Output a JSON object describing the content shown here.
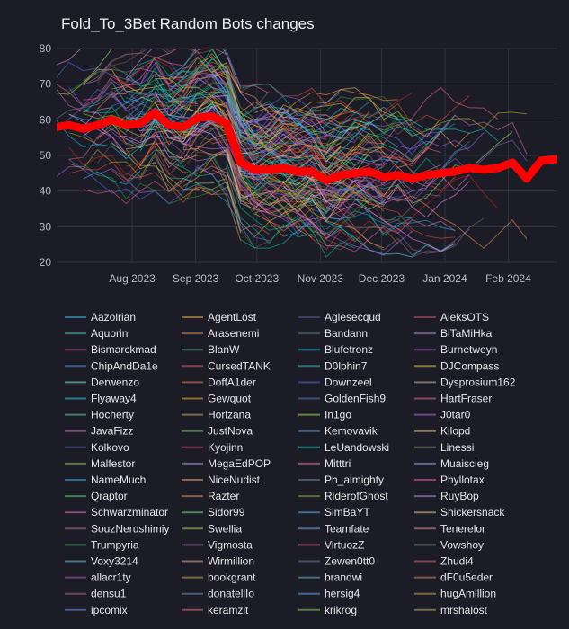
{
  "chart_data": {
    "type": "line",
    "title": "Fold_To_3Bet Random Bots changes",
    "xlabel": "",
    "ylabel": "",
    "ylim": [
      20,
      80
    ],
    "xlim": [
      "2023-06-25",
      "2024-02-25"
    ],
    "grid": true,
    "legend_placement": "bottom",
    "y_ticks": [
      20,
      30,
      40,
      50,
      60,
      70,
      80
    ],
    "x_ticks": [
      {
        "date": "2023-08-01",
        "label": "Aug 2023"
      },
      {
        "date": "2023-09-01",
        "label": "Sep 2023"
      },
      {
        "date": "2023-10-01",
        "label": "Oct 2023"
      },
      {
        "date": "2023-11-01",
        "label": "Nov 2023"
      },
      {
        "date": "2023-12-01",
        "label": "Dec 2023"
      },
      {
        "date": "2024-01-01",
        "label": "Jan 2024"
      },
      {
        "date": "2024-02-01",
        "label": "Feb 2024"
      }
    ],
    "highlight_color": "#ff0000",
    "highlight_x": [
      "2023-06-25",
      "2023-07-01",
      "2023-07-08",
      "2023-07-15",
      "2023-07-22",
      "2023-07-29",
      "2023-08-05",
      "2023-08-12",
      "2023-08-19",
      "2023-08-26",
      "2023-09-02",
      "2023-09-09",
      "2023-09-16",
      "2023-09-23",
      "2023-09-30",
      "2023-10-07",
      "2023-10-14",
      "2023-10-21",
      "2023-10-28",
      "2023-11-04",
      "2023-11-11",
      "2023-11-18",
      "2023-11-25",
      "2023-12-02",
      "2023-12-09",
      "2023-12-16",
      "2023-12-23",
      "2023-12-30",
      "2024-01-06",
      "2024-01-13",
      "2024-01-20",
      "2024-01-27",
      "2024-02-03",
      "2024-02-10",
      "2024-02-17",
      "2024-02-25"
    ],
    "highlight_y": [
      58,
      58.5,
      57.5,
      58.5,
      60,
      58.5,
      59,
      62,
      58.5,
      58,
      60.5,
      61,
      59,
      48,
      46,
      46,
      46.5,
      45.5,
      45.5,
      43,
      44.5,
      45,
      45.5,
      44,
      44.5,
      43.5,
      44.5,
      45,
      45.5,
      46.5,
      46,
      46.5,
      48,
      43.5,
      48.5,
      49
    ],
    "legend": [
      "Aazolrian",
      "AgentLost",
      "Aglesecqud",
      "AleksOTS",
      "Aquorin",
      "Arasenemi",
      "Bandann",
      "BiTaMiHka",
      "Bismarckmad",
      "BlanW",
      "Blufetronz",
      "Burnetweyn",
      "ChipAndDa1e",
      "CursedTANK",
      "D0lphin7",
      "DJCompass",
      "Derwenzo",
      "DoffA1der",
      "Downzeel",
      "Dysprosium162",
      "Flyaway4",
      "Gewquot",
      "GoldenFish9",
      "HartFraser",
      "Hocherty",
      "Horizana",
      "In1go",
      "J0tar0",
      "JavaFizz",
      "JustNova",
      "Kemovavik",
      "Kllopd",
      "Kolkovo",
      "Kyojinn",
      "LeUandowski",
      "Linessi",
      "Malfestor",
      "MegaEdPOP",
      "Mitttri",
      "Muaiscieg",
      "NameMuch",
      "NiceNudist",
      "Ph_almighty",
      "Phyllotax",
      "Qraptor",
      "Razter",
      "RiderofGhost",
      "RuyBop",
      "Schwarzminator",
      "Sidor99",
      "SimBaYT",
      "Snickersnack",
      "SouzNerushimiy",
      "Swellia",
      "Teamfate",
      "Tenerelor",
      "Trumpyria",
      "Vigmosta",
      "VirtuozZ",
      "Vowshoy",
      "Voxy3214",
      "Wirmillion",
      "Zewen0tt0",
      "Zhudi4",
      "allacr1ty",
      "bookgrant",
      "brandwi",
      "dF0u5eder",
      "densu1",
      "donatellIo",
      "hersig4",
      "hugAmillion",
      "ipcomix",
      "keramzit",
      "krikrog",
      "mrshalost"
    ],
    "legend_colors": [
      "#2f6f8f",
      "#8f6a3a",
      "#3b3f66",
      "#7a3b4f",
      "#2e7a78",
      "#8a5a3a",
      "#34545f",
      "#6a5a8a",
      "#7a3f6a",
      "#4a6f5a",
      "#2f7f9a",
      "#6f4a8a",
      "#3f5a8a",
      "#8a3f4f",
      "#2f6f6f",
      "#8a7a3a",
      "#4f8a7a",
      "#8a4f3f",
      "#3a4a7a",
      "#7a6f6f",
      "#2f7a8a",
      "#8a6f2f",
      "#3f4f7a",
      "#8a4a5a",
      "#3f7a6a",
      "#7a6a4a",
      "#5a8a3f",
      "#6a4a8a",
      "#7a4a7a",
      "#4a7a4a",
      "#3f5f8a",
      "#8a7a4a",
      "#4a4a7a",
      "#8a3f5a",
      "#2f8a8a",
      "#6a6a5a",
      "#5a7a3f",
      "#7a5a8a",
      "#8a4a6a",
      "#5a6a8a",
      "#2f6a9a",
      "#8a6a4a",
      "#4a5a6a",
      "#8a3f6f",
      "#3f7f5f",
      "#8a5a4a",
      "#5a6a3f",
      "#6f5a8a",
      "#8a4a7a",
      "#4a8a5a",
      "#3f6f9a",
      "#8a7a5a",
      "#6a4a6a",
      "#7a7a3f",
      "#4a6a8a",
      "#8a5a5a",
      "#4a7a5a",
      "#6a5a7a",
      "#8a4a5f",
      "#6a6a6a",
      "#3f7a8a",
      "#8a6a5a",
      "#4a4a6a",
      "#8a3f4a",
      "#6a3f7a",
      "#7a6a3f",
      "#3f6f7a",
      "#7a5a3f",
      "#6a4a5a",
      "#4a5a7a",
      "#3f6a9a",
      "#7a6a3a",
      "#4a5a8a",
      "#8a4a5a",
      "#5a7a4a",
      "#7a6a4a"
    ]
  }
}
